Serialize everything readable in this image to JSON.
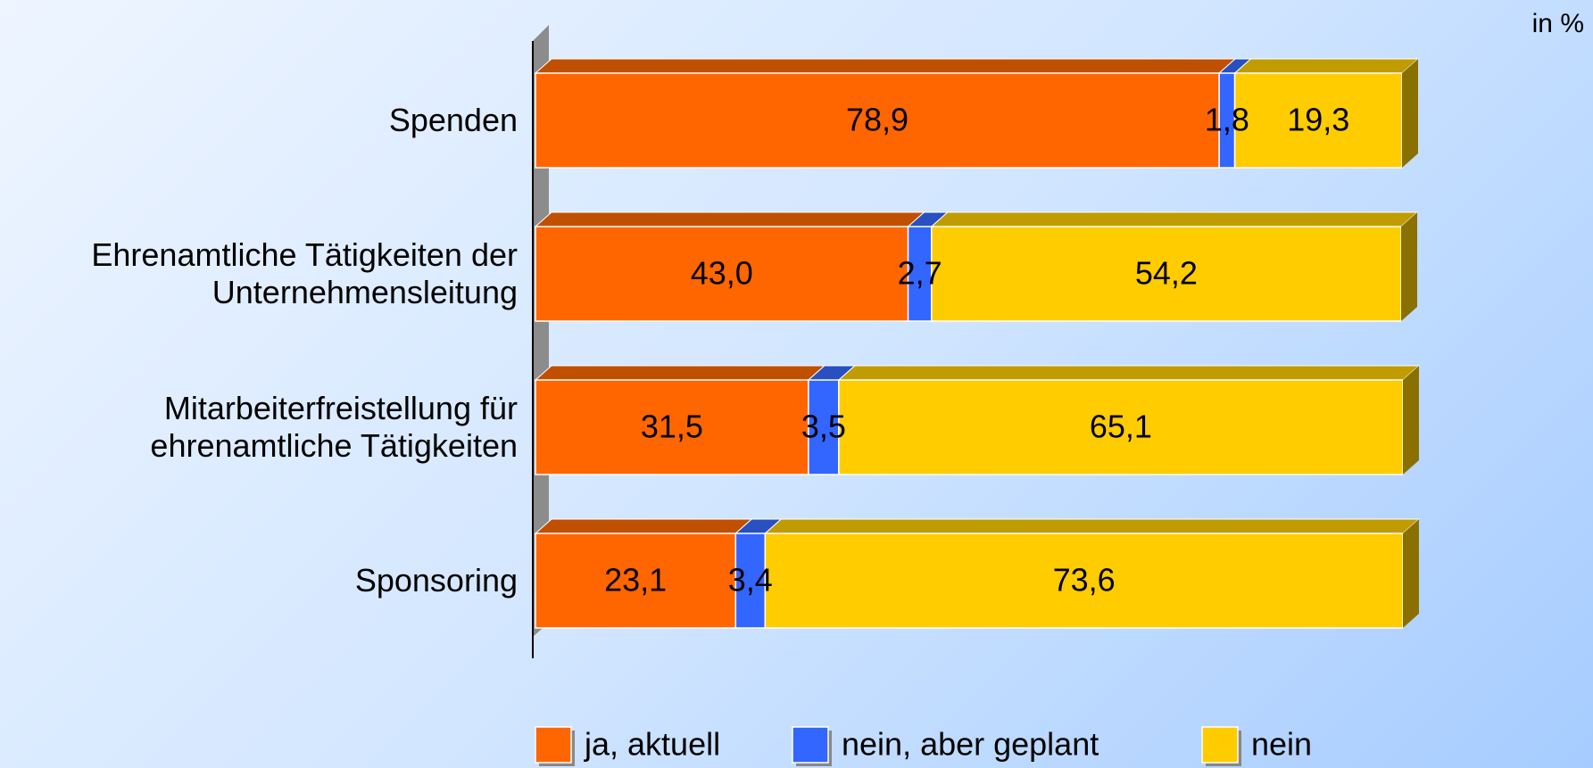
{
  "chart_data": {
    "type": "stacked-bar-horizontal",
    "annotation": "in %",
    "categories": [
      "Spenden",
      "Ehrenamtliche Tätigkeiten der Unternehmensleitung",
      "Mitarbeiterfreistellung für ehrenamtliche Tätigkeiten",
      "Sponsoring"
    ],
    "series": [
      {
        "name": "ja, aktuell",
        "color": "#ff6600",
        "top_color": "#c05000",
        "values": [
          78.9,
          43.0,
          31.5,
          23.1
        ],
        "value_labels": [
          "78,9",
          "43,0",
          "31,5",
          "23,1"
        ]
      },
      {
        "name": "nein, aber geplant",
        "color": "#3366ff",
        "top_color": "#2850c0",
        "values": [
          1.8,
          2.7,
          3.5,
          3.4
        ],
        "value_labels": [
          "1,8",
          "2,7",
          "3,5",
          "3,4"
        ]
      },
      {
        "name": "nein",
        "color": "#ffcc00",
        "top_color": "#c09c00",
        "side_color": "#8a7000",
        "values": [
          19.3,
          54.2,
          65.1,
          73.6
        ],
        "value_labels": [
          "19,3",
          "54,2",
          "65,1",
          "73,6"
        ]
      }
    ],
    "xlim": [
      0,
      100
    ],
    "legend": "bottom"
  }
}
